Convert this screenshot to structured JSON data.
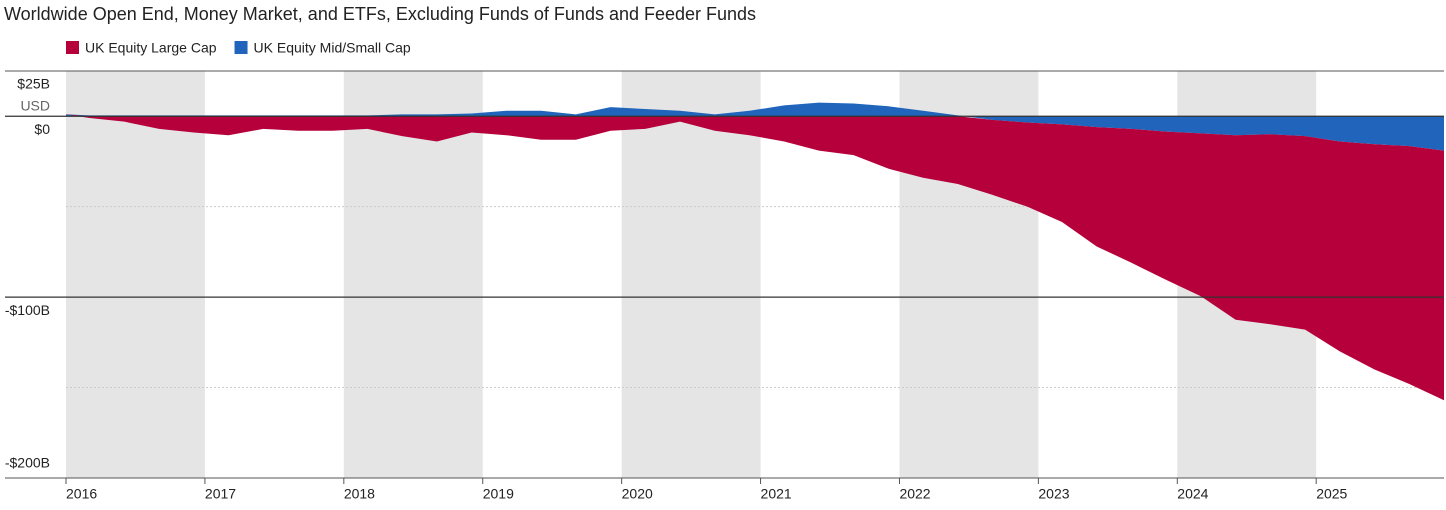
{
  "chart_data": {
    "type": "area",
    "stacked": true,
    "title": "Worldwide Open End, Money Market, and ETFs, Excluding Funds of Funds and Feeder Funds",
    "unit_label": "USD",
    "x": [
      2016.0,
      2016.17,
      2016.42,
      2016.67,
      2016.92,
      2017.17,
      2017.42,
      2017.67,
      2017.92,
      2018.17,
      2018.42,
      2018.67,
      2018.92,
      2019.17,
      2019.42,
      2019.67,
      2019.92,
      2020.17,
      2020.42,
      2020.67,
      2020.92,
      2021.17,
      2021.42,
      2021.67,
      2021.92,
      2022.17,
      2022.42,
      2022.67,
      2022.92,
      2023.17,
      2023.42,
      2023.67,
      2023.92,
      2024.17,
      2024.42,
      2024.67,
      2024.92,
      2025.17,
      2025.42,
      2025.67,
      2025.92
    ],
    "series": [
      {
        "name": "UK Equity Large Cap",
        "color": "#b5003b",
        "values": [
          0,
          -1,
          -3,
          -7,
          -9,
          -10.5,
          -7,
          -8,
          -8,
          -7,
          -11,
          -14,
          -9,
          -10.5,
          -13,
          -13,
          -8,
          -7,
          -3,
          -8,
          -10.5,
          -14,
          -19,
          -21.5,
          -29,
          -34,
          -37.5,
          -41.5,
          -46.5,
          -54,
          -66,
          -74,
          -82,
          -90,
          -102,
          -105,
          -107,
          -116,
          -124.5,
          -131.5,
          -138
        ]
      },
      {
        "name": "UK Equity Mid/Small Cap",
        "color": "#2065bb",
        "values": [
          1,
          0.5,
          0.5,
          0.5,
          0.5,
          0.5,
          0.5,
          0.5,
          0.5,
          0.5,
          1,
          1,
          1.5,
          3,
          3,
          1,
          5,
          4,
          3,
          1,
          3,
          6,
          7.5,
          7,
          5.5,
          3,
          0.5,
          -2,
          -3.5,
          -4.5,
          -6,
          -7,
          -8.5,
          -9.5,
          -10.5,
          -10,
          -11,
          -14,
          -15.5,
          -16.5,
          -19
        ]
      }
    ],
    "xlim": [
      2016,
      2025.92
    ],
    "xticks": [
      2016,
      2017,
      2018,
      2019,
      2020,
      2021,
      2022,
      2023,
      2024,
      2025
    ],
    "ylim": [
      -200,
      25
    ],
    "yticks": [
      {
        "value": 25,
        "label": "$25B"
      },
      {
        "value": 0,
        "label": "$0"
      },
      {
        "value": -100,
        "label": "-$100B"
      },
      {
        "value": -200,
        "label": "-$200B"
      }
    ],
    "ygrid": [
      -50,
      -150
    ],
    "alternating_year_bands": true,
    "legend": "top-left"
  }
}
